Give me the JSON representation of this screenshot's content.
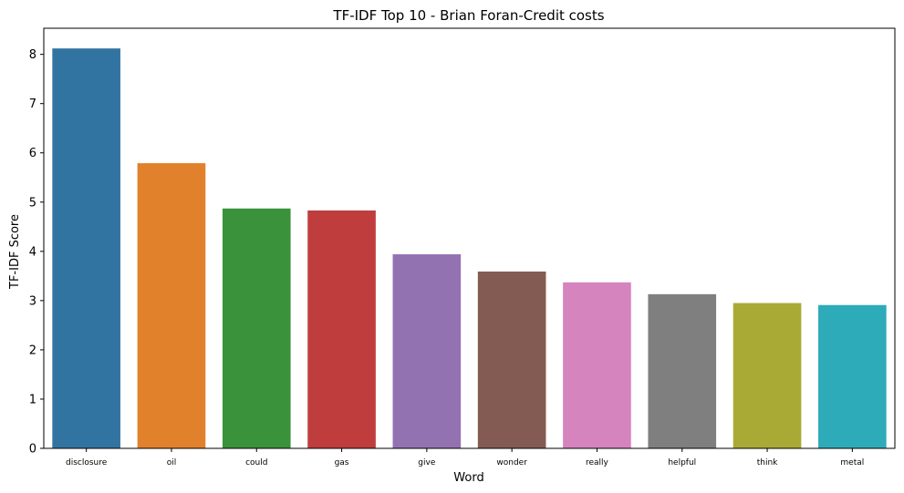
{
  "chart_data": {
    "type": "bar",
    "title": "TF-IDF Top 10 - Brian Foran-Credit costs",
    "xlabel": "Word",
    "ylabel": "TF-IDF Score",
    "categories": [
      "disclosure",
      "oil",
      "could",
      "gas",
      "give",
      "wonder",
      "really",
      "helpful",
      "think",
      "metal"
    ],
    "values": [
      8.12,
      5.79,
      4.87,
      4.83,
      3.94,
      3.59,
      3.37,
      3.13,
      2.95,
      2.91
    ],
    "colors": [
      "#3274a1",
      "#e1812c",
      "#3a923a",
      "#c03d3e",
      "#9372b2",
      "#845b53",
      "#d684bd",
      "#7f7f7f",
      "#a9aa35",
      "#2eabb8"
    ],
    "ylim": [
      0,
      8.53
    ],
    "yticks": [
      0,
      1,
      2,
      3,
      4,
      5,
      6,
      7,
      8
    ],
    "grid": false,
    "legend": "none"
  }
}
